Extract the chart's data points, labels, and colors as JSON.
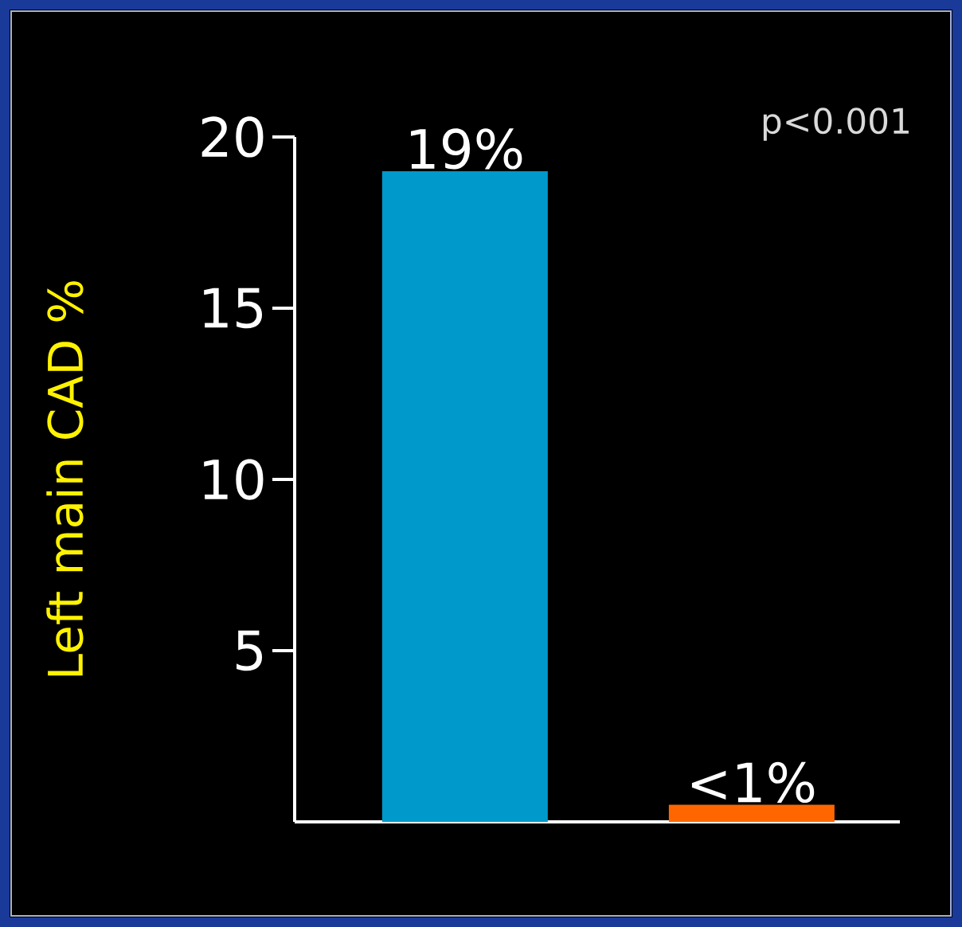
{
  "chart_data": {
    "type": "bar",
    "ylabel": "Left main CAD %",
    "categories": [
      null,
      null
    ],
    "values": [
      19,
      0.5
    ],
    "colors": [
      "#0099cc",
      "#ff6600"
    ],
    "value_labels": [
      "19%",
      "<1%"
    ],
    "ylim": [
      0,
      20
    ],
    "yticks": [
      5,
      10,
      15,
      20
    ],
    "tick_labels": "y",
    "annotations": [
      "p<0.001"
    ]
  }
}
